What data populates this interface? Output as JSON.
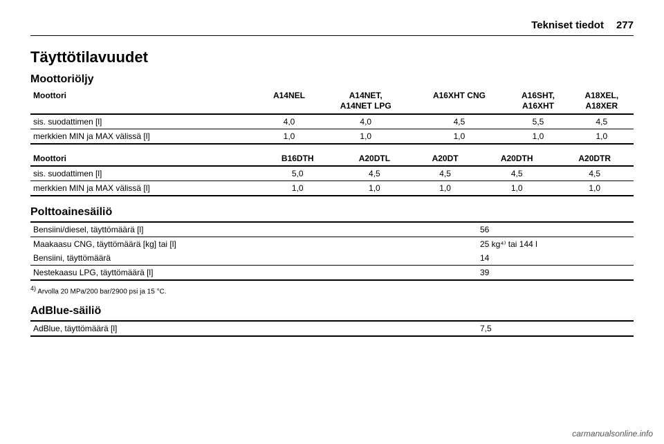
{
  "header": {
    "chapter": "Tekniset tiedot",
    "page": "277"
  },
  "section_title": "Täyttötilavuudet",
  "oil": {
    "heading": "Moottoriöljy",
    "row_label": "Moottori",
    "table1": {
      "cols": [
        "A14NEL",
        "A14NET,\nA14NET LPG",
        "A16XHT CNG",
        "A16SHT,\nA16XHT",
        "A18XEL,\nA18XER"
      ],
      "rows": [
        {
          "label": "sis. suodattimen [l]",
          "vals": [
            "4,0",
            "4,0",
            "4,5",
            "5,5",
            "4,5"
          ]
        },
        {
          "label": "merkkien MIN ja MAX välissä [l]",
          "vals": [
            "1,0",
            "1,0",
            "1,0",
            "1,0",
            "1,0"
          ]
        }
      ]
    },
    "table2": {
      "cols": [
        "B16DTH",
        "A20DTL",
        "A20DT",
        "A20DTH",
        "A20DTR"
      ],
      "rows": [
        {
          "label": "sis. suodattimen [l]",
          "vals": [
            "5,0",
            "4,5",
            "4,5",
            "4,5",
            "4,5"
          ]
        },
        {
          "label": "merkkien MIN ja MAX välissä [l]",
          "vals": [
            "1,0",
            "1,0",
            "1,0",
            "1,0",
            "1,0"
          ]
        }
      ]
    }
  },
  "fuel": {
    "heading": "Polttoainesäiliö",
    "rows": [
      {
        "label": "Bensiini/diesel, täyttömäärä [l]",
        "value": "56"
      },
      {
        "label": "Maakaasu CNG, täyttömäärä [kg] tai [l]",
        "value": "25 kg⁴⁾ tai 144 l"
      },
      {
        "label": "Bensiini, täyttömäärä",
        "value": "14"
      },
      {
        "label": "Nestekaasu LPG, täyttömäärä [l]",
        "value": "39"
      }
    ],
    "footnote_marker": "4)",
    "footnote_text": "Arvolla 20 MPa/200 bar/2900 psi ja 15 °C."
  },
  "adblue": {
    "heading": "AdBlue-säiliö",
    "row": {
      "label": "AdBlue, täyttömäärä [l]",
      "value": "7,5"
    }
  },
  "watermark": "carmanualsonline.info"
}
